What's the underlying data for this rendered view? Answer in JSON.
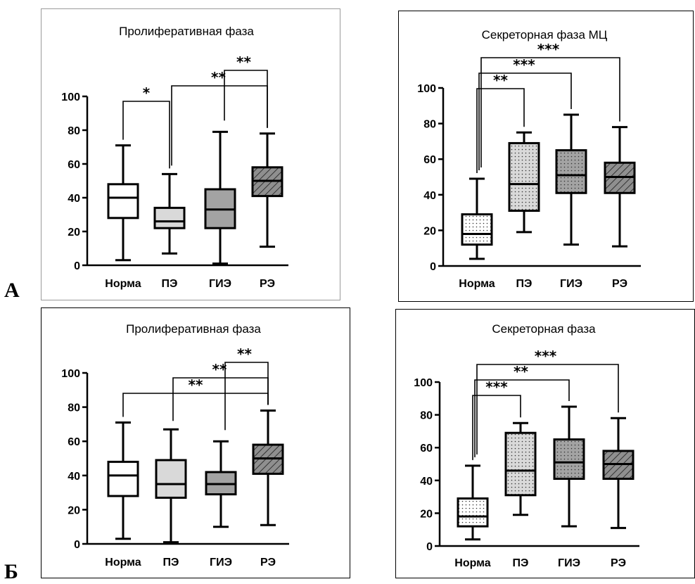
{
  "letters": {
    "A": "А",
    "B": "Б"
  },
  "colors": {
    "Норма": "#ffffff",
    "ПЭ": "#d9d9d9",
    "ГИЭ": "#a3a3a3",
    "РЭ": "#8f8f8f"
  },
  "chart_data": [
    {
      "type": "boxplot",
      "title": "Пролиферативная фаза",
      "xlabel": "",
      "ylabel": "",
      "ylim": [
        0,
        100
      ],
      "yticks": [
        0,
        20,
        40,
        60,
        80,
        100
      ],
      "categories": [
        "Норма",
        "ПЭ",
        "ГИЭ",
        "РЭ"
      ],
      "patterns": [
        "none",
        "none",
        "none",
        "hatch"
      ],
      "boxes": [
        {
          "min": 3,
          "q1": 28,
          "median": 40,
          "q3": 48,
          "max": 71
        },
        {
          "min": 7,
          "q1": 22,
          "median": 26,
          "q3": 34,
          "max": 54
        },
        {
          "min": 1,
          "q1": 22,
          "median": 33,
          "q3": 45,
          "max": 79
        },
        {
          "min": 11,
          "q1": 41,
          "median": 50,
          "q3": 58,
          "max": 78
        }
      ],
      "significance": [
        {
          "from": "Норма",
          "to": "ПЭ",
          "label": "*"
        },
        {
          "from": "ПЭ",
          "to": "РЭ",
          "label": "**"
        },
        {
          "from": "ГИЭ",
          "to": "РЭ",
          "label": "**"
        }
      ]
    },
    {
      "type": "boxplot",
      "title": "Секреторная фаза МЦ",
      "xlabel": "",
      "ylabel": "",
      "ylim": [
        0,
        100
      ],
      "yticks": [
        0,
        20,
        40,
        60,
        80,
        100
      ],
      "categories": [
        "Норма",
        "ПЭ",
        "ГИЭ",
        "РЭ"
      ],
      "patterns": [
        "dots",
        "dots",
        "dots",
        "hatch"
      ],
      "boxes": [
        {
          "min": 4,
          "q1": 12,
          "median": 18,
          "q3": 29,
          "max": 49
        },
        {
          "min": 19,
          "q1": 31,
          "median": 46,
          "q3": 69,
          "max": 75
        },
        {
          "min": 12,
          "q1": 41,
          "median": 51,
          "q3": 65,
          "max": 85
        },
        {
          "min": 11,
          "q1": 41,
          "median": 50,
          "q3": 58,
          "max": 78
        }
      ],
      "significance": [
        {
          "from": "Норма",
          "to": "ПЭ",
          "label": "**"
        },
        {
          "from": "Норма",
          "to": "ГИЭ",
          "label": "***"
        },
        {
          "from": "Норма",
          "to": "РЭ",
          "label": "***"
        }
      ]
    },
    {
      "type": "boxplot",
      "title": "Пролиферативная фаза",
      "xlabel": "",
      "ylabel": "",
      "ylim": [
        0,
        100
      ],
      "yticks": [
        0,
        20,
        40,
        60,
        80,
        100
      ],
      "categories": [
        "Норма",
        "ПЭ",
        "ГИЭ",
        "РЭ"
      ],
      "patterns": [
        "none",
        "none",
        "none",
        "hatch"
      ],
      "boxes": [
        {
          "min": 3,
          "q1": 28,
          "median": 40,
          "q3": 48,
          "max": 71
        },
        {
          "min": 1,
          "q1": 27,
          "median": 35,
          "q3": 49,
          "max": 67
        },
        {
          "min": 10,
          "q1": 29,
          "median": 35,
          "q3": 42,
          "max": 60
        },
        {
          "min": 11,
          "q1": 41,
          "median": 50,
          "q3": 58,
          "max": 78
        }
      ],
      "significance": [
        {
          "from": "Норма",
          "to": "РЭ",
          "label": "**"
        },
        {
          "from": "ПЭ",
          "to": "РЭ",
          "label": "**"
        },
        {
          "from": "ГИЭ",
          "to": "РЭ",
          "label": "**"
        }
      ]
    },
    {
      "type": "boxplot",
      "title": "Секреторная фаза",
      "xlabel": "",
      "ylabel": "",
      "ylim": [
        0,
        100
      ],
      "yticks": [
        0,
        20,
        40,
        60,
        80,
        100
      ],
      "categories": [
        "Норма",
        "ПЭ",
        "ГИЭ",
        "РЭ"
      ],
      "patterns": [
        "dots",
        "dots",
        "dots",
        "hatch"
      ],
      "boxes": [
        {
          "min": 4,
          "q1": 12,
          "median": 18,
          "q3": 29,
          "max": 49
        },
        {
          "min": 19,
          "q1": 31,
          "median": 46,
          "q3": 69,
          "max": 75
        },
        {
          "min": 12,
          "q1": 41,
          "median": 51,
          "q3": 65,
          "max": 85
        },
        {
          "min": 11,
          "q1": 41,
          "median": 50,
          "q3": 58,
          "max": 78
        }
      ],
      "significance": [
        {
          "from": "Норма",
          "to": "ПЭ",
          "label": "***"
        },
        {
          "from": "Норма",
          "to": "ГИЭ",
          "label": "**"
        },
        {
          "from": "Норма",
          "to": "РЭ",
          "label": "***"
        }
      ]
    }
  ]
}
